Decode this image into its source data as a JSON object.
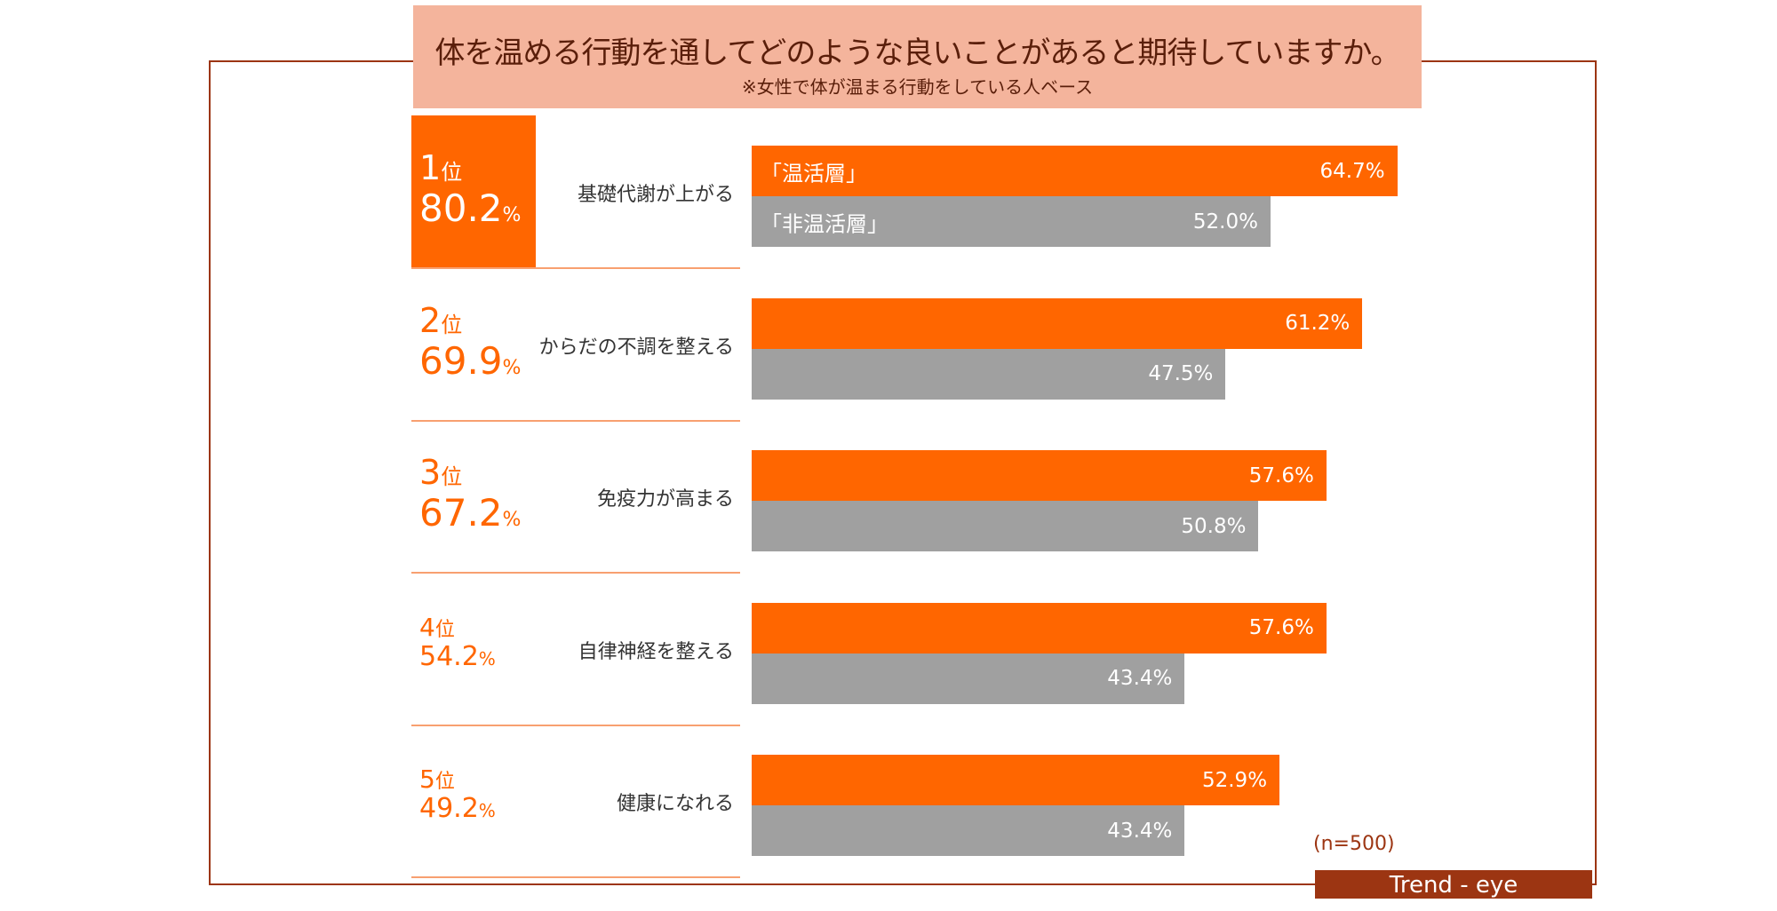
{
  "title": "体を温める行動を通してどのような良いことがあると期待していますか。",
  "subtitle": "※女性で体が温まる行動をしている人ベース",
  "sample_size": "(n=500)",
  "brand": "Trend - eye",
  "colors": {
    "warm": "#ff6600",
    "nonwarm": "#a0a0a0",
    "frame": "#9c3512",
    "title_bg": "#f4b49c"
  },
  "chart_data": {
    "type": "bar",
    "orientation": "horizontal",
    "categories": [
      "基礎代謝が上がる",
      "からだの不調を整える",
      "免疫力が高まる",
      "自律神経を整える",
      "健康になれる"
    ],
    "ranks": [
      {
        "rank": "1",
        "unit": "位",
        "value": "80.2",
        "pct": "%"
      },
      {
        "rank": "2",
        "unit": "位",
        "value": "69.9",
        "pct": "%"
      },
      {
        "rank": "3",
        "unit": "位",
        "value": "67.2",
        "pct": "%"
      },
      {
        "rank": "4",
        "unit": "位",
        "value": "54.2",
        "pct": "%"
      },
      {
        "rank": "5",
        "unit": "位",
        "value": "49.2",
        "pct": "%"
      }
    ],
    "series": [
      {
        "name": "「温活層」",
        "values": [
          64.7,
          61.2,
          57.6,
          57.6,
          52.9
        ],
        "labels": [
          "64.7%",
          "61.2%",
          "57.6%",
          "57.6%",
          "52.9%"
        ]
      },
      {
        "name": "「非温活層」",
        "values": [
          52.0,
          47.5,
          50.8,
          43.4,
          43.4
        ],
        "labels": [
          "52.0%",
          "47.5%",
          "50.8%",
          "43.4%",
          "43.4%"
        ]
      }
    ],
    "unit": "%"
  }
}
